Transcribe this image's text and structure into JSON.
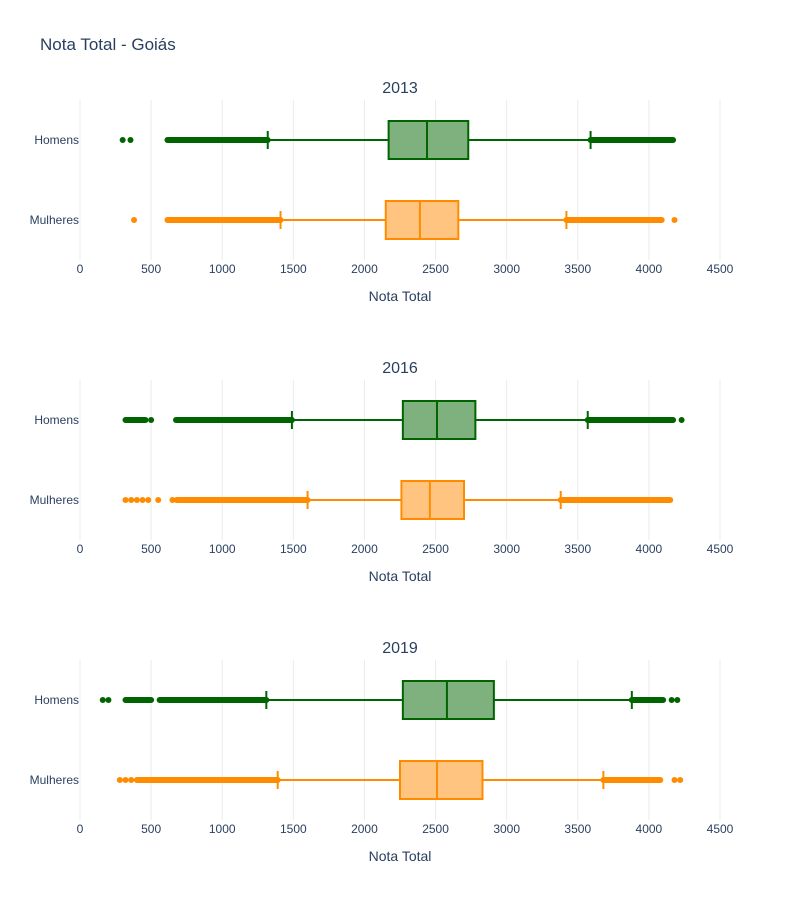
{
  "title": "Nota Total - Goiás",
  "colors": {
    "Homens": {
      "line": "#006400",
      "fill": "#7fb17f"
    },
    "Mulheres": {
      "line": "#ff8c00",
      "fill": "#ffc580"
    },
    "grid": "#ebebeb",
    "text": "#2a3f5f"
  },
  "chart_data": [
    {
      "type": "box",
      "orientation": "horizontal",
      "title": "2013",
      "xlabel": "Nota Total",
      "xlim": [
        0,
        4500
      ],
      "xticks": [
        0,
        500,
        1000,
        1500,
        2000,
        2500,
        3000,
        3500,
        4000,
        4500
      ],
      "categories": [
        "Homens",
        "Mulheres"
      ],
      "series": [
        {
          "name": "Homens",
          "lower_fence": 1320,
          "q1": 2170,
          "median": 2440,
          "q3": 2730,
          "upper_fence": 3590,
          "outliers_low": [
            300,
            355
          ],
          "outlier_band_low": [
            615,
            1320
          ],
          "outlier_band_high": [
            3590,
            4170
          ],
          "outliers_high": []
        },
        {
          "name": "Mulheres",
          "lower_fence": 1410,
          "q1": 2150,
          "median": 2390,
          "q3": 2660,
          "upper_fence": 3420,
          "outliers_low": [
            380
          ],
          "outlier_band_low": [
            615,
            1410
          ],
          "outlier_band_high": [
            3420,
            4090
          ],
          "outliers_high": [
            4180
          ]
        }
      ]
    },
    {
      "type": "box",
      "orientation": "horizontal",
      "title": "2016",
      "xlabel": "Nota Total",
      "xlim": [
        0,
        4500
      ],
      "xticks": [
        0,
        500,
        1000,
        1500,
        2000,
        2500,
        3000,
        3500,
        4000,
        4500
      ],
      "categories": [
        "Homens",
        "Mulheres"
      ],
      "series": [
        {
          "name": "Homens",
          "lower_fence": 1490,
          "q1": 2270,
          "median": 2510,
          "q3": 2780,
          "upper_fence": 3570,
          "outliers_low": [
            500
          ],
          "outlier_band_low": [
            675,
            1490
          ],
          "outlier_band_high": [
            3570,
            4170
          ],
          "outliers_high": [
            4230
          ],
          "outlier_band_low_extra": [
            320,
            460
          ]
        },
        {
          "name": "Mulheres",
          "lower_fence": 1600,
          "q1": 2260,
          "median": 2460,
          "q3": 2700,
          "upper_fence": 3380,
          "outliers_low": [
            320,
            360,
            400,
            440,
            480,
            550,
            650
          ],
          "outlier_band_low": [
            680,
            1600
          ],
          "outlier_band_high": [
            3380,
            4150
          ],
          "outliers_high": []
        }
      ]
    },
    {
      "type": "box",
      "orientation": "horizontal",
      "title": "2019",
      "xlabel": "Nota Total",
      "xlim": [
        0,
        4500
      ],
      "xticks": [
        0,
        500,
        1000,
        1500,
        2000,
        2500,
        3000,
        3500,
        4000,
        4500
      ],
      "categories": [
        "Homens",
        "Mulheres"
      ],
      "series": [
        {
          "name": "Homens",
          "lower_fence": 1310,
          "q1": 2270,
          "median": 2580,
          "q3": 2910,
          "upper_fence": 3880,
          "outliers_low": [
            160,
            200
          ],
          "outlier_band_low": [
            560,
            1310
          ],
          "outlier_band_high": [
            3880,
            4100
          ],
          "outliers_high": [
            4160,
            4200
          ],
          "outlier_band_low_extra": [
            320,
            500
          ]
        },
        {
          "name": "Mulheres",
          "lower_fence": 1390,
          "q1": 2250,
          "median": 2510,
          "q3": 2830,
          "upper_fence": 3680,
          "outliers_low": [
            280,
            320,
            360
          ],
          "outlier_band_low": [
            400,
            1390
          ],
          "outlier_band_high": [
            3680,
            4080
          ],
          "outliers_high": [
            4180,
            4220
          ]
        }
      ]
    }
  ]
}
